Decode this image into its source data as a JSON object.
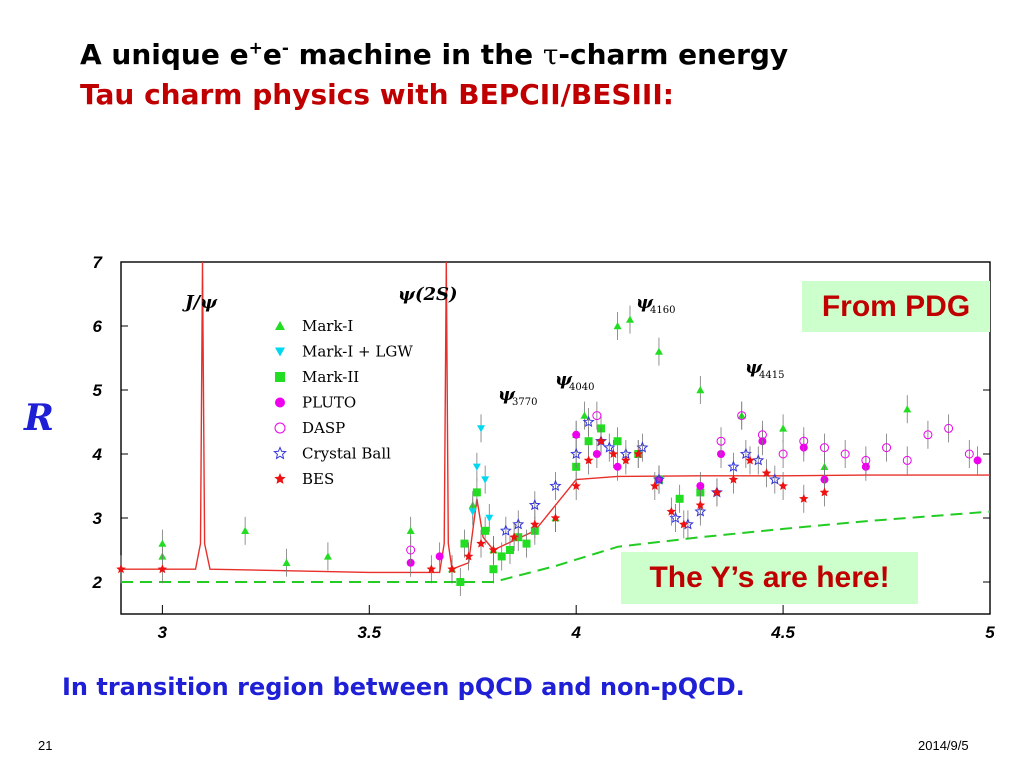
{
  "slide": {
    "title_pre": "A unique e",
    "title_sup1": "+",
    "title_mid": "e",
    "title_sup2": "-",
    "title_post1": " machine in the ",
    "title_tau": "τ",
    "title_post2": "-charm energy",
    "subtitle": "Tau charm physics with BEPCII/BESIII:",
    "badge_pdg": "From PDG",
    "badge_y": "The Y’s are here!",
    "caption": "In transition region between pQCD and non-pQCD.",
    "page_number": "21",
    "date": "2014/9/5"
  },
  "colors": {
    "title": "#000000",
    "subtitle": "#c00000",
    "caption": "#1f1fd6",
    "badge_bg": "#ccffcc",
    "badge_text": "#c00000",
    "theory_curve": "#e8302a",
    "pqcd_curve": "#22cc22"
  },
  "chart_data": {
    "type": "scatter",
    "ylabel": "R",
    "xlim": [
      2.9,
      5.0
    ],
    "ylim": [
      1.5,
      7.0
    ],
    "xticks": [
      "3",
      "3.5",
      "4",
      "4.5",
      "5"
    ],
    "yticks": [
      "2",
      "3",
      "4",
      "5",
      "6",
      "7"
    ],
    "resonances": [
      {
        "name": "J/ψ",
        "sub": "",
        "x": 3.097
      },
      {
        "name": "ψ(2S)",
        "sub": "",
        "x": 3.686
      },
      {
        "name": "ψ",
        "sub": "3770",
        "x": 3.773
      },
      {
        "name": "ψ",
        "sub": "4040",
        "x": 4.04
      },
      {
        "name": "ψ",
        "sub": "4160",
        "x": 4.16
      },
      {
        "name": "ψ",
        "sub": "4415",
        "x": 4.415
      }
    ],
    "legend": [
      {
        "label": "Mark-I",
        "marker": "triangle-up",
        "color": "#22dd22"
      },
      {
        "label": "Mark-I + LGW",
        "marker": "triangle-down",
        "color": "#00d8f0"
      },
      {
        "label": "Mark-II",
        "marker": "square",
        "color": "#22dd22"
      },
      {
        "label": "PLUTO",
        "marker": "circle",
        "color": "#ee00ee"
      },
      {
        "label": "DASP",
        "marker": "circle-open",
        "color": "#ee00ee"
      },
      {
        "label": "Crystal Ball",
        "marker": "star-open",
        "color": "#3333dd"
      },
      {
        "label": "BES",
        "marker": "star",
        "color": "#ee1111"
      }
    ],
    "series": [
      {
        "name": "Mark-I",
        "points": [
          [
            3.0,
            2.4
          ],
          [
            3.0,
            2.6
          ],
          [
            3.2,
            2.8
          ],
          [
            3.3,
            2.3
          ],
          [
            3.4,
            2.4
          ],
          [
            3.6,
            2.8
          ],
          [
            3.7,
            2.2
          ],
          [
            3.75,
            3.2
          ],
          [
            3.8,
            2.5
          ],
          [
            3.95,
            3.0
          ],
          [
            4.0,
            4.3
          ],
          [
            4.02,
            4.6
          ],
          [
            4.1,
            6.0
          ],
          [
            4.13,
            6.1
          ],
          [
            4.2,
            5.6
          ],
          [
            4.3,
            5.0
          ],
          [
            4.4,
            4.6
          ],
          [
            4.5,
            4.4
          ],
          [
            4.6,
            3.8
          ],
          [
            4.8,
            4.7
          ]
        ]
      },
      {
        "name": "Mark-I + LGW",
        "points": [
          [
            3.75,
            3.1
          ],
          [
            3.76,
            3.8
          ],
          [
            3.77,
            4.4
          ],
          [
            3.78,
            3.6
          ],
          [
            3.79,
            3.0
          ]
        ]
      },
      {
        "name": "Mark-II",
        "points": [
          [
            3.72,
            2.0
          ],
          [
            3.73,
            2.6
          ],
          [
            3.76,
            3.4
          ],
          [
            3.78,
            2.8
          ],
          [
            3.8,
            2.2
          ],
          [
            3.82,
            2.4
          ],
          [
            3.84,
            2.5
          ],
          [
            3.86,
            2.7
          ],
          [
            3.88,
            2.6
          ],
          [
            3.9,
            2.8
          ],
          [
            4.0,
            3.8
          ],
          [
            4.03,
            4.2
          ],
          [
            4.06,
            4.4
          ],
          [
            4.1,
            4.2
          ],
          [
            4.15,
            4.0
          ],
          [
            4.2,
            3.6
          ],
          [
            4.25,
            3.3
          ],
          [
            4.3,
            3.4
          ]
        ]
      },
      {
        "name": "PLUTO",
        "points": [
          [
            3.6,
            2.3
          ],
          [
            3.67,
            2.4
          ],
          [
            4.0,
            4.3
          ],
          [
            4.05,
            4.0
          ],
          [
            4.1,
            3.8
          ],
          [
            4.2,
            3.6
          ],
          [
            4.3,
            3.5
          ],
          [
            4.35,
            4.0
          ],
          [
            4.45,
            4.2
          ],
          [
            4.55,
            4.1
          ],
          [
            4.6,
            3.6
          ],
          [
            4.7,
            3.8
          ],
          [
            4.97,
            3.9
          ]
        ]
      },
      {
        "name": "DASP",
        "points": [
          [
            3.6,
            2.5
          ],
          [
            4.05,
            4.6
          ],
          [
            4.35,
            4.2
          ],
          [
            4.4,
            4.6
          ],
          [
            4.45,
            4.3
          ],
          [
            4.5,
            4.0
          ],
          [
            4.55,
            4.2
          ],
          [
            4.6,
            4.1
          ],
          [
            4.65,
            4.0
          ],
          [
            4.7,
            3.9
          ],
          [
            4.75,
            4.1
          ],
          [
            4.8,
            3.9
          ],
          [
            4.85,
            4.3
          ],
          [
            4.9,
            4.4
          ],
          [
            4.95,
            4.0
          ]
        ]
      },
      {
        "name": "Crystal Ball",
        "points": [
          [
            3.83,
            2.8
          ],
          [
            3.86,
            2.9
          ],
          [
            3.9,
            3.2
          ],
          [
            3.95,
            3.5
          ],
          [
            4.0,
            4.0
          ],
          [
            4.03,
            4.5
          ],
          [
            4.06,
            4.2
          ],
          [
            4.08,
            4.1
          ],
          [
            4.12,
            4.0
          ],
          [
            4.16,
            4.1
          ],
          [
            4.2,
            3.6
          ],
          [
            4.24,
            3.0
          ],
          [
            4.27,
            2.9
          ],
          [
            4.3,
            3.1
          ],
          [
            4.34,
            3.4
          ],
          [
            4.38,
            3.8
          ],
          [
            4.41,
            4.0
          ],
          [
            4.44,
            3.9
          ],
          [
            4.48,
            3.6
          ]
        ]
      },
      {
        "name": "BES",
        "points": [
          [
            2.9,
            2.2
          ],
          [
            3.0,
            2.2
          ],
          [
            3.65,
            2.2
          ],
          [
            3.7,
            2.2
          ],
          [
            3.74,
            2.4
          ],
          [
            3.77,
            2.6
          ],
          [
            3.8,
            2.5
          ],
          [
            3.85,
            2.7
          ],
          [
            3.9,
            2.9
          ],
          [
            3.95,
            3.0
          ],
          [
            4.0,
            3.5
          ],
          [
            4.03,
            3.9
          ],
          [
            4.06,
            4.2
          ],
          [
            4.09,
            4.0
          ],
          [
            4.12,
            3.9
          ],
          [
            4.15,
            4.0
          ],
          [
            4.19,
            3.5
          ],
          [
            4.23,
            3.1
          ],
          [
            4.26,
            2.9
          ],
          [
            4.3,
            3.2
          ],
          [
            4.34,
            3.4
          ],
          [
            4.38,
            3.6
          ],
          [
            4.42,
            3.9
          ],
          [
            4.46,
            3.7
          ],
          [
            4.5,
            3.5
          ],
          [
            4.55,
            3.3
          ],
          [
            4.6,
            3.4
          ]
        ]
      }
    ],
    "curves": [
      {
        "name": "theory",
        "style": "solid",
        "color": "#e8302a",
        "points": [
          [
            2.9,
            2.2
          ],
          [
            3.08,
            2.2
          ],
          [
            3.092,
            2.6
          ],
          [
            3.097,
            7.0
          ],
          [
            3.102,
            2.6
          ],
          [
            3.115,
            2.2
          ],
          [
            3.5,
            2.15
          ],
          [
            3.67,
            2.15
          ],
          [
            3.681,
            2.6
          ],
          [
            3.686,
            7.0
          ],
          [
            3.691,
            2.6
          ],
          [
            3.7,
            2.2
          ],
          [
            3.74,
            2.3
          ],
          [
            3.76,
            3.3
          ],
          [
            3.775,
            2.7
          ],
          [
            3.8,
            2.5
          ],
          [
            3.9,
            2.8
          ],
          [
            4.0,
            3.6
          ],
          [
            4.1,
            3.65
          ],
          [
            4.3,
            3.66
          ],
          [
            4.5,
            3.66
          ],
          [
            4.7,
            3.67
          ],
          [
            5.0,
            3.67
          ]
        ]
      },
      {
        "name": "pQCD",
        "style": "dashed",
        "color": "#22cc22",
        "points": [
          [
            2.9,
            2.0
          ],
          [
            3.7,
            2.0
          ],
          [
            3.8,
            2.0
          ],
          [
            3.95,
            2.25
          ],
          [
            4.0,
            2.35
          ],
          [
            4.1,
            2.55
          ],
          [
            4.3,
            2.7
          ],
          [
            4.5,
            2.83
          ],
          [
            4.7,
            2.95
          ],
          [
            4.9,
            3.05
          ],
          [
            5.0,
            3.1
          ]
        ]
      }
    ]
  }
}
